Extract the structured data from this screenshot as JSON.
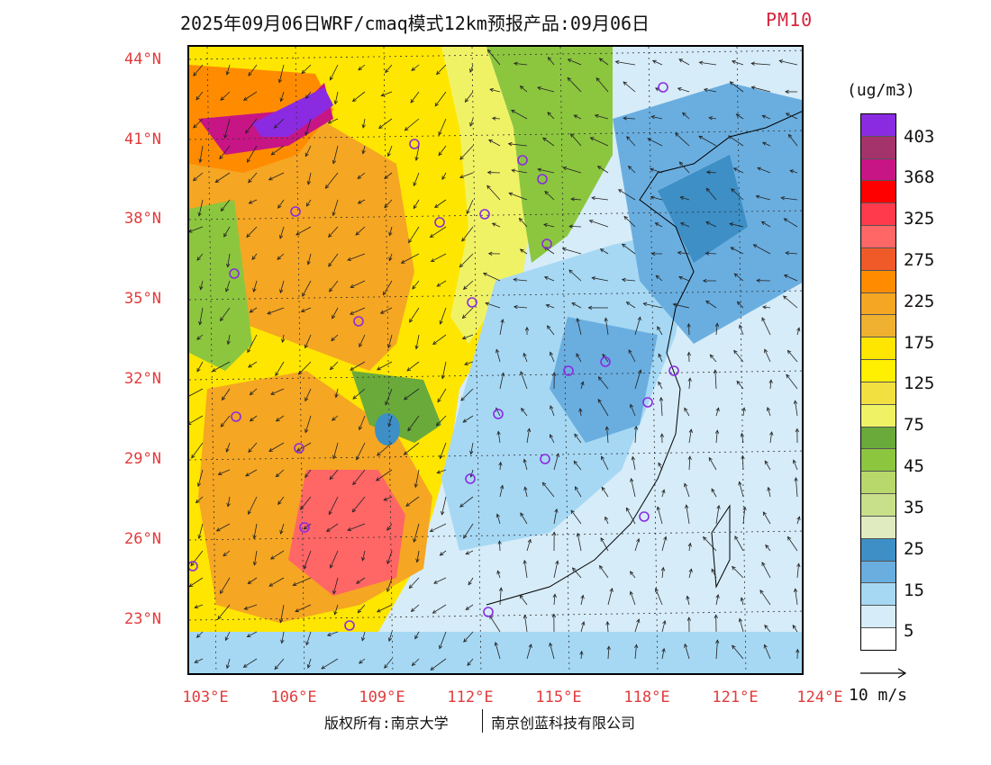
{
  "title": {
    "main": "2025年09月06日WRF/cmaq模式12km预报产品:09月06日",
    "pollutant": "PM10"
  },
  "map": {
    "lat_labels": [
      "44°N",
      "41°N",
      "38°N",
      "35°N",
      "32°N",
      "29°N",
      "26°N",
      "23°N"
    ],
    "lon_labels": [
      "103°E",
      "106°E",
      "109°E",
      "112°E",
      "115°E",
      "118°E",
      "121°E",
      "124°E"
    ]
  },
  "legend": {
    "units": "(ug/m3)",
    "labels": [
      "403",
      "368",
      "325",
      "275",
      "225",
      "175",
      "125",
      "75",
      "45",
      "35",
      "25",
      "15",
      "5"
    ],
    "colors": [
      "#8a2be2",
      "#a4326b",
      "#c71585",
      "#ff0000",
      "#ff3a4d",
      "#ff6666",
      "#f05a28",
      "#ff8c00",
      "#f5a623",
      "#f0b030",
      "#ffe600",
      "#ffef00",
      "#f2e040",
      "#f0f266",
      "#6aaa3a",
      "#8cc63f",
      "#b8d86b",
      "#c9e08a",
      "#e0ebbf",
      "#3d8fc6",
      "#6aaee0",
      "#a6d8f4",
      "#d6ecf8",
      "#ffffff"
    ]
  },
  "wind_scale": {
    "label": "10 m/s"
  },
  "copyright": {
    "left": "版权所有:南京大学",
    "right": "南京创蓝科技有限公司"
  }
}
